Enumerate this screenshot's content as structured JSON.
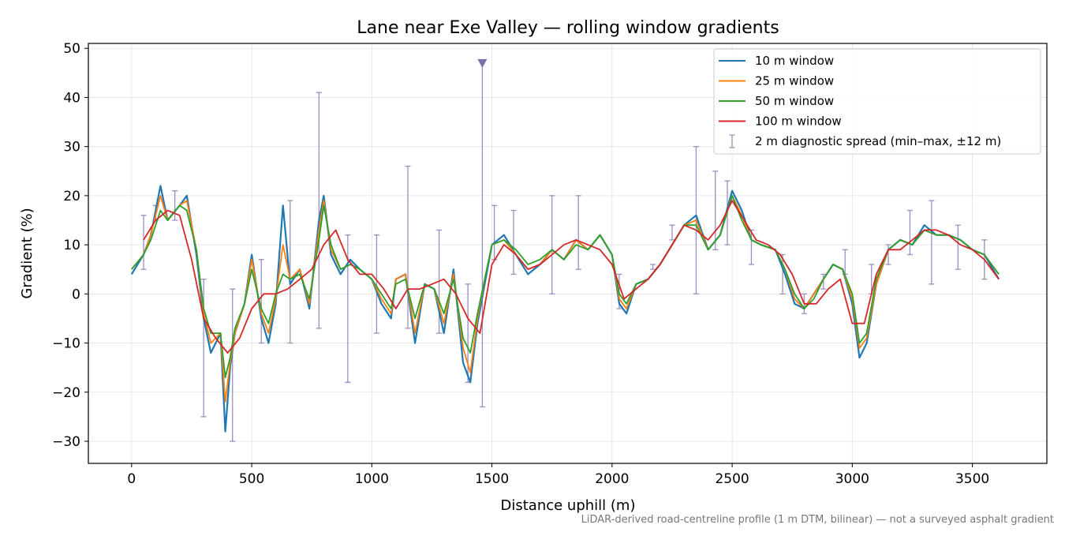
{
  "chart_data": {
    "type": "line",
    "title": "Lane near Exe Valley — rolling window gradients",
    "xlabel": "Distance uphill (m)",
    "ylabel": "Gradient (%)",
    "footnote": "LiDAR-derived road-centreline profile (1 m DTM, bilinear) — not a surveyed asphalt gradient",
    "xlim": [
      -180,
      3810
    ],
    "ylim": [
      -34.5,
      51
    ],
    "xticks": [
      0,
      500,
      1000,
      1500,
      2000,
      2500,
      3000,
      3500
    ],
    "yticks": [
      -30,
      -20,
      -10,
      0,
      10,
      20,
      30,
      40,
      50
    ],
    "xtick_labels": [
      "0",
      "500",
      "1000",
      "1500",
      "2000",
      "2500",
      "3000",
      "3500"
    ],
    "ytick_labels": [
      "−30",
      "−20",
      "−10",
      "0",
      "10",
      "20",
      "30",
      "40",
      "50"
    ],
    "grid": true,
    "legend_position": "top-right",
    "series": [
      {
        "name": "10 m window",
        "color": "#1f77b4",
        "x": [
          0,
          50,
          80,
          120,
          150,
          200,
          230,
          270,
          300,
          330,
          370,
          390,
          410,
          430,
          470,
          500,
          540,
          570,
          600,
          630,
          660,
          700,
          740,
          780,
          800,
          830,
          870,
          910,
          950,
          1000,
          1040,
          1080,
          1100,
          1140,
          1180,
          1220,
          1260,
          1300,
          1340,
          1380,
          1410,
          1440,
          1470,
          1500,
          1550,
          1600,
          1650,
          1700,
          1750,
          1800,
          1850,
          1900,
          1950,
          2000,
          2030,
          2060,
          2100,
          2150,
          2200,
          2250,
          2300,
          2350,
          2400,
          2450,
          2500,
          2540,
          2580,
          2620,
          2680,
          2720,
          2760,
          2800,
          2840,
          2880,
          2920,
          2960,
          3000,
          3030,
          3060,
          3100,
          3150,
          3200,
          3250,
          3300,
          3350,
          3400,
          3450,
          3500,
          3550,
          3610
        ],
        "y": [
          4,
          8,
          12,
          22,
          15,
          18,
          20,
          8,
          -5,
          -12,
          -8,
          -28,
          -15,
          -8,
          -2,
          8,
          -5,
          -10,
          -2,
          18,
          2,
          5,
          -3,
          15,
          20,
          8,
          4,
          7,
          5,
          3,
          -2,
          -5,
          3,
          4,
          -10,
          2,
          1,
          -8,
          5,
          -14,
          -18,
          -6,
          2,
          10,
          12,
          8,
          4,
          6,
          9,
          7,
          11,
          9,
          12,
          8,
          -2,
          -4,
          2,
          3,
          6,
          10,
          14,
          16,
          9,
          12,
          21,
          17,
          11,
          10,
          9,
          4,
          -2,
          -3,
          0,
          3,
          6,
          5,
          -2,
          -13,
          -10,
          2,
          9,
          11,
          10,
          14,
          12,
          12,
          11,
          9,
          8,
          3
        ]
      },
      {
        "name": "25 m window",
        "color": "#ff7f0e",
        "x": [
          0,
          50,
          80,
          120,
          150,
          200,
          230,
          270,
          300,
          330,
          370,
          390,
          410,
          430,
          470,
          500,
          540,
          570,
          600,
          630,
          660,
          700,
          740,
          780,
          800,
          830,
          870,
          910,
          950,
          1000,
          1040,
          1080,
          1100,
          1140,
          1180,
          1220,
          1260,
          1300,
          1340,
          1380,
          1410,
          1440,
          1470,
          1500,
          1550,
          1600,
          1650,
          1700,
          1750,
          1800,
          1850,
          1900,
          1950,
          2000,
          2030,
          2060,
          2100,
          2150,
          2200,
          2250,
          2300,
          2350,
          2400,
          2450,
          2500,
          2540,
          2580,
          2620,
          2680,
          2720,
          2760,
          2800,
          2840,
          2880,
          2920,
          2960,
          3000,
          3030,
          3060,
          3100,
          3150,
          3200,
          3250,
          3300,
          3350,
          3400,
          3450,
          3500,
          3550,
          3610
        ],
        "y": [
          5,
          8,
          12,
          20,
          15,
          18,
          19,
          9,
          -4,
          -10,
          -8,
          -22,
          -14,
          -8,
          -2,
          7,
          -4,
          -8,
          -1,
          10,
          3,
          5,
          -2,
          13,
          19,
          9,
          5,
          6,
          5,
          3,
          -1,
          -4,
          3,
          4,
          -8,
          2,
          1,
          -6,
          4,
          -11,
          -16,
          -5,
          3,
          10,
          11,
          8,
          5,
          6,
          9,
          7,
          11,
          9,
          12,
          8,
          -1,
          -3,
          2,
          3,
          6,
          10,
          14,
          15,
          9,
          12,
          20,
          16,
          11,
          10,
          9,
          5,
          -1,
          -3,
          0,
          3,
          6,
          5,
          -1,
          -11,
          -9,
          2,
          9,
          11,
          10,
          13,
          12,
          12,
          11,
          9,
          8,
          4
        ]
      },
      {
        "name": "50 m window",
        "color": "#2ca02c",
        "x": [
          0,
          50,
          80,
          120,
          150,
          200,
          230,
          270,
          300,
          330,
          370,
          390,
          410,
          430,
          470,
          500,
          540,
          570,
          600,
          630,
          660,
          700,
          740,
          780,
          800,
          830,
          870,
          910,
          950,
          1000,
          1040,
          1080,
          1100,
          1140,
          1180,
          1220,
          1260,
          1300,
          1340,
          1380,
          1410,
          1440,
          1470,
          1500,
          1550,
          1600,
          1650,
          1700,
          1750,
          1800,
          1850,
          1900,
          1950,
          2000,
          2030,
          2060,
          2100,
          2150,
          2200,
          2250,
          2300,
          2350,
          2400,
          2450,
          2500,
          2540,
          2580,
          2620,
          2680,
          2720,
          2760,
          2800,
          2840,
          2880,
          2920,
          2960,
          3000,
          3030,
          3060,
          3100,
          3150,
          3200,
          3250,
          3300,
          3350,
          3400,
          3450,
          3500,
          3550,
          3610
        ],
        "y": [
          5,
          8,
          11,
          17,
          15,
          18,
          17,
          9,
          -3,
          -8,
          -8,
          -17,
          -13,
          -7,
          -2,
          5,
          -3,
          -6,
          0,
          4,
          3,
          4,
          -1,
          11,
          18,
          10,
          5,
          6,
          5,
          3,
          0,
          -3,
          2,
          3,
          -5,
          2,
          1,
          -4,
          3,
          -9,
          -12,
          -4,
          3,
          10,
          11,
          9,
          6,
          7,
          9,
          7,
          10,
          9,
          12,
          8,
          0,
          -2,
          2,
          3,
          6,
          10,
          14,
          14,
          9,
          12,
          20,
          15,
          11,
          10,
          9,
          5,
          0,
          -3,
          -1,
          3,
          6,
          5,
          0,
          -10,
          -8,
          3,
          9,
          11,
          10,
          13,
          12,
          12,
          11,
          9,
          8,
          4
        ]
      },
      {
        "name": "100 m window",
        "color": "#d62728",
        "x": [
          50,
          100,
          150,
          200,
          250,
          300,
          350,
          400,
          450,
          500,
          550,
          600,
          650,
          700,
          750,
          800,
          850,
          900,
          950,
          1000,
          1050,
          1100,
          1150,
          1200,
          1250,
          1300,
          1350,
          1400,
          1450,
          1500,
          1550,
          1600,
          1650,
          1700,
          1750,
          1800,
          1850,
          1900,
          1950,
          2000,
          2050,
          2100,
          2150,
          2200,
          2250,
          2300,
          2350,
          2400,
          2450,
          2500,
          2550,
          2600,
          2650,
          2700,
          2750,
          2800,
          2850,
          2900,
          2950,
          3000,
          3050,
          3100,
          3150,
          3200,
          3250,
          3300,
          3350,
          3400,
          3450,
          3500,
          3550,
          3610
        ],
        "y": [
          11,
          15,
          17,
          16,
          7,
          -5,
          -9,
          -12,
          -9,
          -3,
          0,
          0,
          1,
          3,
          5,
          10,
          13,
          7,
          4,
          4,
          1,
          -3,
          1,
          1,
          2,
          3,
          0,
          -5,
          -8,
          6,
          10,
          8,
          5,
          6,
          8,
          10,
          11,
          10,
          9,
          6,
          -1,
          1,
          3,
          6,
          10,
          14,
          13,
          11,
          14,
          19,
          15,
          11,
          10,
          8,
          4,
          -2,
          -2,
          1,
          3,
          -6,
          -6,
          4,
          9,
          9,
          11,
          13,
          13,
          12,
          10,
          9,
          7,
          3
        ]
      }
    ],
    "error_bars": {
      "name": "2 m diagnostic spread (min–max, ±12 m)",
      "color": "#9a8fc0",
      "x": [
        50,
        100,
        180,
        300,
        420,
        540,
        660,
        780,
        900,
        1020,
        1150,
        1280,
        1400,
        1460,
        1510,
        1590,
        1750,
        1860,
        2030,
        2170,
        2250,
        2350,
        2430,
        2480,
        2580,
        2710,
        2800,
        2880,
        2970,
        3080,
        3150,
        3240,
        3330,
        3440,
        3550
      ],
      "low": [
        5,
        15,
        15,
        -25,
        -30,
        -10,
        -10,
        -7,
        -18,
        -8,
        -7,
        -8,
        -18,
        -23,
        7,
        4,
        0,
        5,
        -3,
        5,
        11,
        0,
        9,
        10,
        6,
        0,
        -4,
        1,
        4,
        0,
        6,
        8,
        2,
        5,
        3
      ],
      "high": [
        16,
        18,
        21,
        3,
        1,
        7,
        19,
        41,
        12,
        12,
        26,
        13,
        2,
        47,
        18,
        17,
        20,
        20,
        4,
        6,
        14,
        30,
        25,
        23,
        13,
        8,
        0,
        4,
        9,
        6,
        10,
        17,
        19,
        14,
        11
      ],
      "clipped_marker_x": 1460,
      "clipped_marker_y": 47
    }
  }
}
